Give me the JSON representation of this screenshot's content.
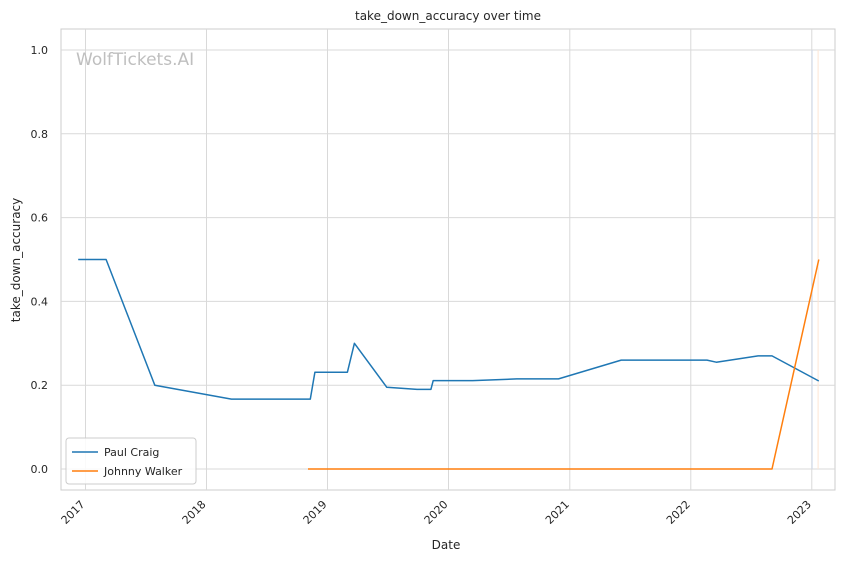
{
  "chart_data": {
    "type": "line",
    "title": "take_down_accuracy over time",
    "xlabel": "Date",
    "ylabel": "take_down_accuracy",
    "watermark": "WolfTickets.AI",
    "xlim": [
      "2016-10-19",
      "2023-03-12"
    ],
    "ylim": [
      -0.05,
      1.05
    ],
    "x_ticks": [
      "2017-01-01",
      "2018-01-01",
      "2019-01-01",
      "2020-01-01",
      "2021-01-01",
      "2022-01-01",
      "2023-01-01"
    ],
    "x_tick_labels": [
      "2017",
      "2018",
      "2019",
      "2020",
      "2021",
      "2022",
      "2023"
    ],
    "y_ticks": [
      0.0,
      0.2,
      0.4,
      0.6,
      0.8,
      1.0
    ],
    "y_tick_labels": [
      "0.0",
      "0.2",
      "0.4",
      "0.6",
      "0.8",
      "1.0"
    ],
    "grid": true,
    "legend_position": "lower-left",
    "reference_lines": [
      {
        "date": "2023-01-02",
        "color": "#cfd8e8"
      },
      {
        "date": "2023-01-20",
        "color": "#fde7d6"
      }
    ],
    "series": [
      {
        "name": "Paul Craig",
        "color": "#1f77b4",
        "points": [
          [
            "2016-12-10",
            0.5
          ],
          [
            "2017-03-04",
            0.5
          ],
          [
            "2017-07-29",
            0.2
          ],
          [
            "2018-03-17",
            0.167
          ],
          [
            "2018-11-10",
            0.167
          ],
          [
            "2018-11-24",
            0.231
          ],
          [
            "2019-03-02",
            0.231
          ],
          [
            "2019-03-23",
            0.3
          ],
          [
            "2019-06-29",
            0.195
          ],
          [
            "2019-09-28",
            0.19
          ],
          [
            "2019-11-09",
            0.19
          ],
          [
            "2019-11-16",
            0.211
          ],
          [
            "2020-03-14",
            0.211
          ],
          [
            "2020-07-25",
            0.215
          ],
          [
            "2020-11-28",
            0.215
          ],
          [
            "2021-06-05",
            0.26
          ],
          [
            "2022-02-19",
            0.26
          ],
          [
            "2022-03-19",
            0.255
          ],
          [
            "2022-07-23",
            0.27
          ],
          [
            "2022-09-03",
            0.27
          ],
          [
            "2023-01-22",
            0.21
          ]
        ]
      },
      {
        "name": "Johnny Walker",
        "color": "#ff7f0e",
        "points": [
          [
            "2018-11-03",
            0.0
          ],
          [
            "2019-01-05",
            0.0
          ],
          [
            "2022-09-03",
            0.0
          ],
          [
            "2023-01-22",
            0.5
          ]
        ]
      }
    ]
  }
}
